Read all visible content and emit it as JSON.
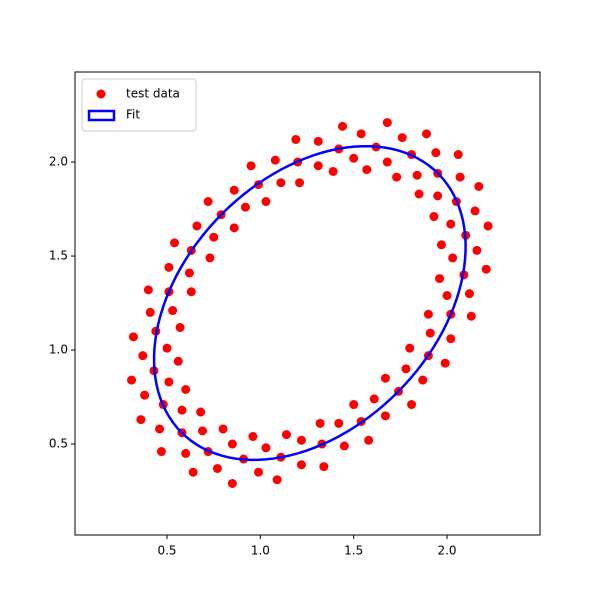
{
  "chart_data": {
    "type": "scatter",
    "series": [
      {
        "name": "test data",
        "color": "#ff0000",
        "x": [
          1.85,
          1.95,
          2.06,
          1.73,
          1.81,
          1.89,
          1.57,
          1.62,
          1.68,
          1.39,
          1.42,
          1.44,
          1.21,
          1.2,
          1.19,
          1.03,
          0.99,
          0.95,
          0.86,
          0.79,
          0.72,
          0.73,
          0.63,
          0.54,
          0.63,
          0.51,
          0.4,
          0.57,
          0.44,
          0.32,
          0.56,
          0.43,
          0.31,
          0.6,
          0.48,
          0.36,
          0.68,
          0.58,
          0.47,
          0.8,
          0.72,
          0.64,
          0.96,
          0.91,
          0.85,
          1.14,
          1.11,
          1.09,
          1.32,
          1.33,
          1.34,
          1.5,
          1.54,
          1.58,
          1.67,
          1.74,
          1.81,
          1.8,
          1.9,
          1.99,
          1.9,
          2.02,
          2.13,
          1.96,
          2.09,
          2.21,
          1.97,
          2.1,
          2.22,
          1.93,
          2.05,
          2.17,
          1.84,
          1.94,
          1.68,
          1.76,
          1.5,
          1.54,
          1.31,
          1.31,
          1.11,
          1.08,
          0.92,
          0.86,
          0.75,
          0.66,
          0.62,
          0.51,
          0.53,
          0.41,
          0.5,
          0.37,
          0.51,
          0.38,
          0.58,
          0.46,
          0.69,
          0.6,
          0.85,
          0.77,
          1.03,
          0.99,
          1.22,
          1.22,
          1.42,
          1.45,
          1.61,
          1.67,
          1.78,
          1.87,
          1.91,
          2.02,
          2.0,
          2.12,
          2.03,
          2.16,
          2.02,
          2.15,
          1.95,
          2.07
        ],
        "y": [
          1.83,
          1.94,
          2.04,
          1.92,
          2.04,
          2.15,
          1.96,
          2.08,
          2.21,
          1.95,
          2.07,
          2.19,
          1.89,
          2.0,
          2.12,
          1.79,
          1.88,
          1.98,
          1.65,
          1.72,
          1.79,
          1.49,
          1.53,
          1.57,
          1.31,
          1.31,
          1.32,
          1.12,
          1.1,
          1.07,
          0.94,
          0.89,
          0.84,
          0.79,
          0.71,
          0.63,
          0.67,
          0.56,
          0.46,
          0.58,
          0.46,
          0.35,
          0.54,
          0.42,
          0.29,
          0.55,
          0.43,
          0.31,
          0.61,
          0.5,
          0.38,
          0.71,
          0.62,
          0.52,
          0.85,
          0.78,
          0.71,
          1.01,
          0.97,
          0.93,
          1.19,
          1.19,
          1.18,
          1.38,
          1.4,
          1.43,
          1.56,
          1.61,
          1.66,
          1.71,
          1.79,
          1.87,
          1.93,
          2.05,
          2.0,
          2.13,
          2.02,
          2.15,
          1.98,
          2.11,
          1.89,
          2.01,
          1.76,
          1.85,
          1.6,
          1.66,
          1.41,
          1.44,
          1.21,
          1.2,
          1.01,
          0.97,
          0.83,
          0.76,
          0.68,
          0.58,
          0.57,
          0.45,
          0.5,
          0.37,
          0.48,
          0.35,
          0.52,
          0.39,
          0.61,
          0.49,
          0.74,
          0.65,
          0.9,
          0.84,
          1.09,
          1.06,
          1.29,
          1.3,
          1.49,
          1.53,
          1.67,
          1.74,
          1.82,
          1.92
        ]
      }
    ],
    "fit": {
      "name": "Fit",
      "color": "#0000ff",
      "center": [
        1.265,
        1.25
      ],
      "width": 1.946,
      "height": 1.336,
      "angle": 45
    },
    "xlim": [
      0.007,
      2.498
    ],
    "ylim": [
      0.016,
      2.479
    ],
    "xticks": [
      0.5,
      {
        "value": 1,
        "label": "1.0"
      },
      1.5,
      {
        "value": 2,
        "label": "2.0"
      }
    ],
    "yticks": [
      0.5,
      {
        "value": 1,
        "label": "1.0"
      },
      1.5,
      {
        "value": 2,
        "label": "2.0"
      }
    ],
    "legend": "upper left"
  }
}
